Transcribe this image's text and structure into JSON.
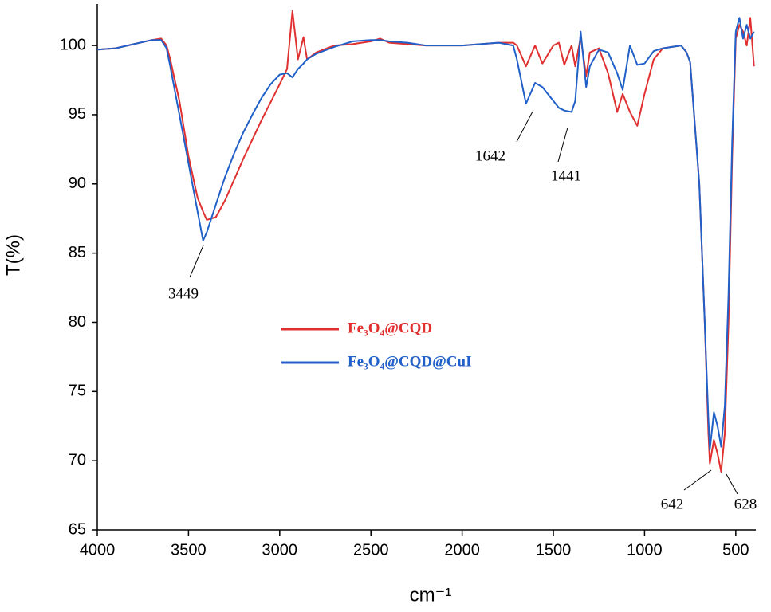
{
  "chart_data": {
    "type": "line",
    "x_label": "cm⁻¹",
    "y_label": "T(%)",
    "xlim": [
      4000,
      390
    ],
    "ylim": [
      65,
      103
    ],
    "xticks": [
      4000,
      3500,
      3000,
      2500,
      2000,
      1500,
      1000,
      500
    ],
    "yticks": [
      65,
      70,
      75,
      80,
      85,
      90,
      95,
      100
    ],
    "x": [
      4000,
      3900,
      3800,
      3700,
      3650,
      3620,
      3600,
      3550,
      3500,
      3450,
      3420,
      3400,
      3350,
      3300,
      3250,
      3200,
      3150,
      3100,
      3050,
      3000,
      2960,
      2930,
      2900,
      2870,
      2850,
      2800,
      2700,
      2600,
      2500,
      2450,
      2400,
      2300,
      2200,
      2100,
      2000,
      1900,
      1800,
      1720,
      1700,
      1650,
      1600,
      1560,
      1500,
      1470,
      1440,
      1400,
      1380,
      1350,
      1320,
      1300,
      1250,
      1200,
      1150,
      1120,
      1080,
      1040,
      1000,
      950,
      900,
      800,
      770,
      750,
      700,
      670,
      650,
      642,
      620,
      600,
      580,
      560,
      540,
      520,
      500,
      480,
      460,
      440,
      420,
      400
    ],
    "series": [
      {
        "name": "Fe₃O₄@CQD",
        "color": "#e03030",
        "values": [
          99.7,
          99.8,
          100.1,
          100.4,
          100.5,
          100.0,
          99,
          96,
          92,
          89,
          88,
          87.4,
          87.6,
          88.8,
          90.3,
          91.8,
          93.2,
          94.6,
          95.9,
          97.2,
          98.3,
          102.5,
          99,
          100.6,
          99,
          99.5,
          100,
          100.1,
          100.3,
          100.5,
          100.2,
          100.1,
          100,
          100,
          100,
          100.1,
          100.2,
          100.2,
          100,
          98.5,
          100,
          98.7,
          100,
          100.2,
          98.6,
          100,
          98.5,
          100.6,
          97.8,
          99.5,
          99.8,
          98,
          95.2,
          96.5,
          95.2,
          94.2,
          96.5,
          99,
          99.8,
          100,
          99.5,
          98.8,
          90,
          80,
          72,
          69.8,
          71.5,
          70.5,
          69.2,
          72,
          80,
          92,
          100.5,
          101.5,
          101,
          100,
          102,
          98.5
        ]
      },
      {
        "name": "Fe₃O₄@CQD@CuI",
        "color": "#2060c8",
        "values": [
          99.7,
          99.8,
          100.1,
          100.4,
          100.4,
          99.8,
          98.5,
          95,
          91.5,
          88,
          85.9,
          86.5,
          88.5,
          90.5,
          92.2,
          93.7,
          95,
          96.2,
          97.2,
          97.9,
          98,
          97.7,
          98.3,
          98.7,
          99,
          99.4,
          99.9,
          100.3,
          100.4,
          100.4,
          100.3,
          100.2,
          100,
          100,
          100,
          100.1,
          100.2,
          100,
          99,
          95.8,
          97.3,
          97,
          96,
          95.5,
          95.3,
          95.2,
          96,
          101,
          97,
          98.5,
          99.7,
          99.5,
          98,
          96.8,
          100,
          98.6,
          98.7,
          99.6,
          99.8,
          100,
          99.5,
          98.8,
          90,
          80,
          73,
          70.8,
          73.5,
          72.5,
          71,
          74,
          82,
          93,
          101,
          102,
          100.5,
          101.5,
          100.5,
          101
        ]
      }
    ],
    "annotations": [
      "3449",
      "1642",
      "1441",
      "642",
      "628"
    ]
  }
}
